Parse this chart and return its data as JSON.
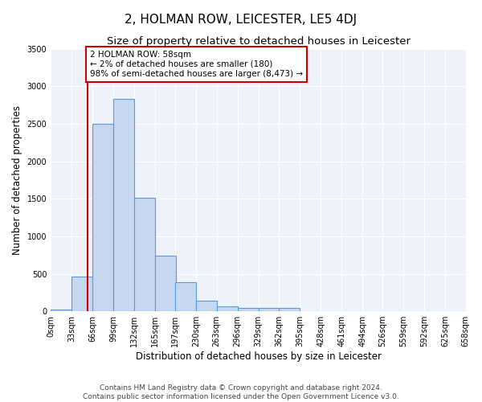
{
  "title": "2, HOLMAN ROW, LEICESTER, LE5 4DJ",
  "subtitle": "Size of property relative to detached houses in Leicester",
  "xlabel": "Distribution of detached houses by size in Leicester",
  "ylabel": "Number of detached properties",
  "footer_line1": "Contains HM Land Registry data © Crown copyright and database right 2024.",
  "footer_line2": "Contains public sector information licensed under the Open Government Licence v3.0.",
  "annotation_title": "2 HOLMAN ROW: 58sqm",
  "annotation_line1": "← 2% of detached houses are smaller (180)",
  "annotation_line2": "98% of semi-detached houses are larger (8,473) →",
  "property_line_x": 58,
  "bar_left_edges": [
    0,
    33,
    66,
    99,
    132,
    165,
    197,
    230,
    263,
    296,
    329,
    362,
    395,
    428,
    461,
    494,
    526,
    559,
    592,
    625
  ],
  "bar_heights": [
    20,
    460,
    2500,
    2830,
    1510,
    740,
    390,
    140,
    70,
    50,
    50,
    50,
    0,
    0,
    0,
    0,
    0,
    0,
    0,
    0
  ],
  "bin_width": 33,
  "bar_color": "#c5d8f0",
  "bar_edge_color": "#5b9bd5",
  "vline_color": "#cc0000",
  "annotation_box_color": "#cc0000",
  "annotation_text_color": "#000000",
  "background_color": "#eef2fa",
  "ylim": [
    0,
    3500
  ],
  "xlim": [
    0,
    660
  ],
  "xtick_labels": [
    "0sqm",
    "33sqm",
    "66sqm",
    "99sqm",
    "132sqm",
    "165sqm",
    "197sqm",
    "230sqm",
    "263sqm",
    "296sqm",
    "329sqm",
    "362sqm",
    "395sqm",
    "428sqm",
    "461sqm",
    "494sqm",
    "526sqm",
    "559sqm",
    "592sqm",
    "625sqm",
    "658sqm"
  ],
  "xtick_positions": [
    0,
    33,
    66,
    99,
    132,
    165,
    197,
    230,
    263,
    296,
    329,
    362,
    395,
    428,
    461,
    494,
    526,
    559,
    592,
    625,
    658
  ],
  "ytick_positions": [
    0,
    500,
    1000,
    1500,
    2000,
    2500,
    3000,
    3500
  ],
  "title_fontsize": 11,
  "subtitle_fontsize": 9.5,
  "axis_label_fontsize": 8.5,
  "tick_fontsize": 7,
  "annotation_fontsize": 7.5,
  "footer_fontsize": 6.5
}
